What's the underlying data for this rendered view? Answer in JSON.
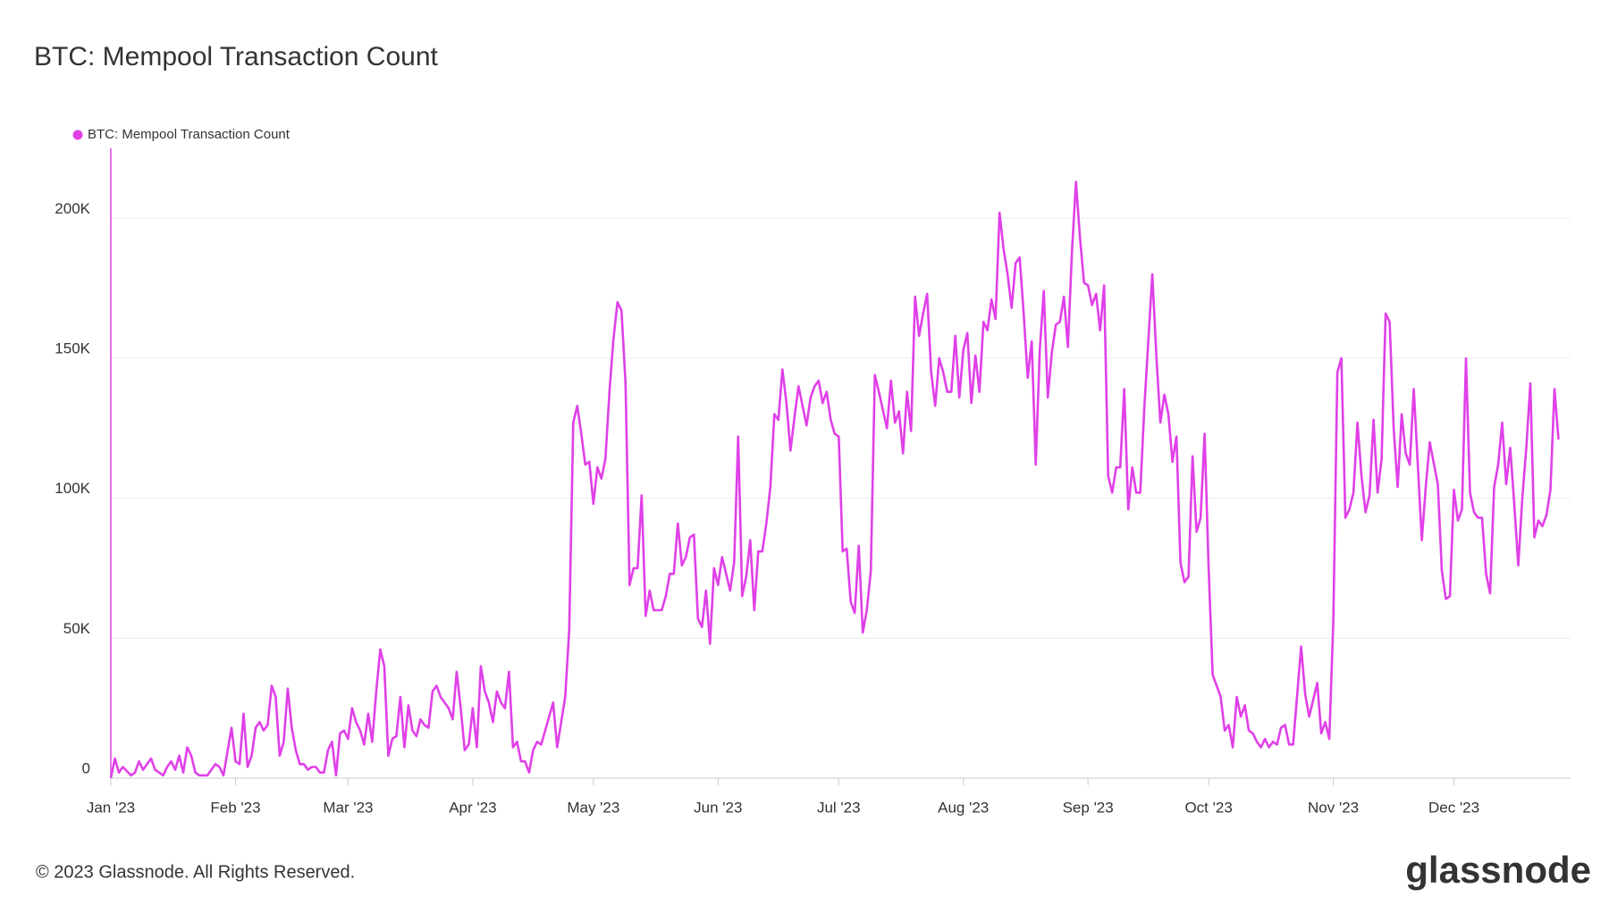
{
  "chart_data": {
    "type": "line",
    "title": "BTC: Mempool Transaction Count",
    "x": [
      0,
      1,
      2,
      3,
      5,
      6,
      7,
      8,
      10,
      11,
      13,
      14,
      15,
      16,
      17,
      18,
      19,
      20,
      21,
      22,
      23,
      24,
      25,
      26,
      27,
      28,
      30,
      31,
      32,
      33,
      34,
      35,
      36,
      37,
      38,
      39,
      40,
      41,
      42,
      43,
      44,
      45,
      46,
      47,
      48,
      49,
      50,
      51,
      52,
      53,
      54,
      55,
      56,
      57,
      58,
      59,
      60,
      61,
      62,
      63,
      64,
      65,
      66,
      67,
      68,
      69,
      70,
      71,
      72,
      73,
      74,
      75,
      76,
      77,
      78,
      79,
      80,
      81,
      82,
      84,
      85,
      86,
      87,
      88,
      89,
      90,
      91,
      92,
      93,
      94,
      95,
      96,
      97,
      98,
      99,
      100,
      101,
      102,
      103,
      104,
      105,
      106,
      107,
      108,
      109,
      110,
      111,
      112,
      113,
      114,
      115,
      116,
      117,
      118,
      119,
      120,
      121,
      122,
      123,
      124,
      125,
      126,
      127,
      128,
      129,
      130,
      131,
      132,
      133,
      134,
      135,
      136,
      137,
      138,
      139,
      140,
      141,
      142,
      143,
      144,
      145,
      146,
      147,
      148,
      149,
      150,
      151,
      152,
      153,
      154,
      155,
      156,
      157,
      158,
      159,
      160,
      161,
      162,
      163,
      164,
      165,
      166,
      167,
      168,
      169,
      170,
      171,
      172,
      173,
      174,
      175,
      176,
      177,
      178,
      179,
      180,
      181,
      182,
      183,
      184,
      185,
      186,
      187,
      188,
      189,
      190,
      191,
      193,
      194,
      195,
      196,
      197,
      198,
      199,
      200,
      201,
      202,
      203,
      204,
      205,
      206,
      207,
      208,
      209,
      210,
      211,
      212,
      213,
      214,
      215,
      216,
      217,
      218,
      219,
      220,
      221,
      222,
      223,
      224,
      225,
      226,
      227,
      228,
      229,
      230,
      231,
      232,
      233,
      234,
      235,
      236,
      237,
      238,
      239,
      240,
      241,
      242,
      243,
      244,
      245,
      246,
      247,
      248,
      249,
      250,
      251,
      252,
      253,
      254,
      255,
      256,
      257,
      259,
      260,
      261,
      262,
      263,
      264,
      265,
      266,
      267,
      268,
      269,
      270,
      271,
      272,
      273,
      274,
      275,
      276,
      277,
      278,
      279,
      280,
      281,
      282,
      283,
      284,
      285,
      286,
      287,
      288,
      289,
      290,
      291,
      292,
      293,
      294,
      296,
      297,
      298,
      299,
      300,
      301,
      302,
      303,
      304,
      305,
      306,
      307,
      308,
      309,
      310,
      311,
      312,
      313,
      314,
      315,
      316,
      317,
      318,
      319,
      320,
      321,
      322,
      323,
      324,
      325,
      326,
      327,
      328,
      330,
      331,
      332,
      333,
      334,
      335,
      336,
      337,
      338,
      339,
      340,
      341,
      342,
      343,
      344,
      345,
      346,
      347,
      348,
      349,
      350,
      351,
      352,
      353,
      354,
      355,
      356,
      357,
      358,
      359,
      360
    ],
    "series": [
      {
        "name": "BTC: Mempool Transaction Count",
        "color": "#e040e8",
        "values": [
          0,
          7000,
          2000,
          4000,
          1000,
          2000,
          6000,
          3000,
          7000,
          3000,
          1000,
          4000,
          6000,
          3000,
          8000,
          2000,
          11000,
          8000,
          2000,
          1000,
          1000,
          1000,
          3000,
          5000,
          4000,
          1000,
          18000,
          6000,
          5000,
          23000,
          4000,
          8000,
          18000,
          20000,
          17000,
          19000,
          33000,
          29000,
          8000,
          13000,
          32000,
          18000,
          10000,
          5000,
          5000,
          3000,
          4000,
          4000,
          2000,
          2000,
          10000,
          13000,
          1000,
          16000,
          17000,
          14000,
          25000,
          20000,
          17000,
          12000,
          23000,
          13000,
          31000,
          46000,
          40000,
          8000,
          14000,
          15000,
          29000,
          11000,
          26000,
          17000,
          15000,
          21000,
          19000,
          18000,
          31000,
          33000,
          29000,
          25000,
          21000,
          38000,
          25000,
          10000,
          12000,
          25000,
          11000,
          40000,
          31000,
          27000,
          20000,
          31000,
          27000,
          25000,
          38000,
          11000,
          13000,
          6000,
          6000,
          2000,
          10000,
          13000,
          12000,
          17000,
          22000,
          27000,
          11000,
          20000,
          29000,
          53000,
          127000,
          133000,
          123000,
          112000,
          113000,
          98000,
          111000,
          107000,
          114000,
          138000,
          157000,
          170000,
          167000,
          141000,
          69000,
          75000,
          75000,
          101000,
          58000,
          67000,
          60000,
          60000,
          60000,
          65000,
          73000,
          73000,
          91000,
          76000,
          79000,
          86000,
          87000,
          57000,
          54000,
          67000,
          48000,
          75000,
          69000,
          79000,
          73000,
          67000,
          77000,
          122000,
          65000,
          72000,
          85000,
          60000,
          81000,
          81000,
          91000,
          104000,
          130000,
          128000,
          146000,
          134000,
          117000,
          129000,
          140000,
          133000,
          126000,
          136000,
          140000,
          142000,
          134000,
          138000,
          128000,
          123000,
          122000,
          81000,
          82000,
          63000,
          59000,
          83000,
          52000,
          60000,
          74000,
          144000,
          138000,
          125000,
          142000,
          127000,
          131000,
          116000,
          138000,
          124000,
          172000,
          158000,
          166000,
          173000,
          145000,
          133000,
          150000,
          145000,
          138000,
          138000,
          158000,
          136000,
          153000,
          159000,
          134000,
          151000,
          138000,
          163000,
          160000,
          171000,
          164000,
          202000,
          189000,
          180000,
          168000,
          184000,
          186000,
          166000,
          143000,
          156000,
          112000,
          153000,
          174000,
          136000,
          152000,
          162000,
          163000,
          172000,
          154000,
          188000,
          213000,
          193000,
          177000,
          176000,
          169000,
          173000,
          160000,
          176000,
          108000,
          102000,
          111000,
          111000,
          139000,
          96000,
          111000,
          102000,
          102000,
          132000,
          180000,
          151000,
          127000,
          137000,
          130000,
          113000,
          122000,
          77000,
          70000,
          72000,
          115000,
          88000,
          93000,
          123000,
          75000,
          37000,
          33000,
          29000,
          17000,
          19000,
          11000,
          29000,
          22000,
          26000,
          17000,
          16000,
          13000,
          11000,
          14000,
          11000,
          13000,
          12000,
          18000,
          19000,
          12000,
          12000,
          47000,
          30000,
          22000,
          28000,
          34000,
          16000,
          20000,
          14000,
          56000,
          145000,
          150000,
          93000,
          96000,
          102000,
          127000,
          108000,
          95000,
          101000,
          128000,
          102000,
          114000,
          166000,
          163000,
          125000,
          104000,
          130000,
          116000,
          112000,
          139000,
          112000,
          85000,
          104000,
          120000,
          105000,
          74000,
          64000,
          65000,
          103000,
          92000,
          96000,
          150000,
          102000,
          95000,
          93000,
          93000,
          73000,
          66000,
          104000,
          112000,
          127000,
          105000,
          118000,
          98000,
          76000,
          100000,
          118000,
          141000,
          86000,
          92000,
          90000,
          94000,
          103000,
          139000,
          121000
        ]
      }
    ],
    "xlim": [
      0,
      363
    ],
    "xticks": [
      {
        "value": 0,
        "label": "Jan '23"
      },
      {
        "value": 31,
        "label": "Feb '23"
      },
      {
        "value": 59,
        "label": "Mar '23"
      },
      {
        "value": 90,
        "label": "Apr '23"
      },
      {
        "value": 120,
        "label": "May '23"
      },
      {
        "value": 151,
        "label": "Jun '23"
      },
      {
        "value": 181,
        "label": "Jul '23"
      },
      {
        "value": 212,
        "label": "Aug '23"
      },
      {
        "value": 243,
        "label": "Sep '23"
      },
      {
        "value": 273,
        "label": "Oct '23"
      },
      {
        "value": 304,
        "label": "Nov '23"
      },
      {
        "value": 334,
        "label": "Dec '23"
      }
    ],
    "ylim": [
      0,
      225000
    ],
    "yticks": [
      0,
      {
        "value": 50000,
        "label": "50K"
      },
      {
        "value": 100000,
        "label": "100K"
      },
      {
        "value": 150000,
        "label": "150K"
      },
      {
        "value": 200000,
        "label": "200K"
      }
    ],
    "grid": true,
    "legend": "top-left"
  },
  "footer": "© 2023 Glassnode. All Rights Reserved.",
  "brand": "glassnode"
}
